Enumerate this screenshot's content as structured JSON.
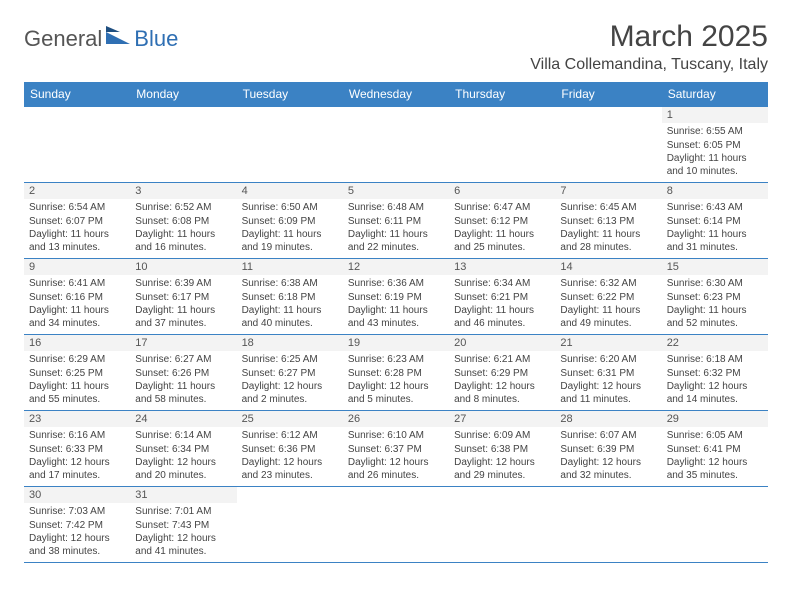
{
  "logo": {
    "text1": "General",
    "text2": "Blue",
    "accent": "#2f6fb3"
  },
  "title": "March 2025",
  "location": "Villa Collemandina, Tuscany, Italy",
  "colors": {
    "headerBg": "#3b82c4",
    "headerText": "#ffffff",
    "border": "#3b82c4",
    "dayNumBg": "#f3f3f3",
    "text": "#444444"
  },
  "dayHeaders": [
    "Sunday",
    "Monday",
    "Tuesday",
    "Wednesday",
    "Thursday",
    "Friday",
    "Saturday"
  ],
  "weeks": [
    [
      null,
      null,
      null,
      null,
      null,
      null,
      {
        "n": "1",
        "sunrise": "6:55 AM",
        "sunset": "6:05 PM",
        "daylight": "11 hours and 10 minutes."
      }
    ],
    [
      {
        "n": "2",
        "sunrise": "6:54 AM",
        "sunset": "6:07 PM",
        "daylight": "11 hours and 13 minutes."
      },
      {
        "n": "3",
        "sunrise": "6:52 AM",
        "sunset": "6:08 PM",
        "daylight": "11 hours and 16 minutes."
      },
      {
        "n": "4",
        "sunrise": "6:50 AM",
        "sunset": "6:09 PM",
        "daylight": "11 hours and 19 minutes."
      },
      {
        "n": "5",
        "sunrise": "6:48 AM",
        "sunset": "6:11 PM",
        "daylight": "11 hours and 22 minutes."
      },
      {
        "n": "6",
        "sunrise": "6:47 AM",
        "sunset": "6:12 PM",
        "daylight": "11 hours and 25 minutes."
      },
      {
        "n": "7",
        "sunrise": "6:45 AM",
        "sunset": "6:13 PM",
        "daylight": "11 hours and 28 minutes."
      },
      {
        "n": "8",
        "sunrise": "6:43 AM",
        "sunset": "6:14 PM",
        "daylight": "11 hours and 31 minutes."
      }
    ],
    [
      {
        "n": "9",
        "sunrise": "6:41 AM",
        "sunset": "6:16 PM",
        "daylight": "11 hours and 34 minutes."
      },
      {
        "n": "10",
        "sunrise": "6:39 AM",
        "sunset": "6:17 PM",
        "daylight": "11 hours and 37 minutes."
      },
      {
        "n": "11",
        "sunrise": "6:38 AM",
        "sunset": "6:18 PM",
        "daylight": "11 hours and 40 minutes."
      },
      {
        "n": "12",
        "sunrise": "6:36 AM",
        "sunset": "6:19 PM",
        "daylight": "11 hours and 43 minutes."
      },
      {
        "n": "13",
        "sunrise": "6:34 AM",
        "sunset": "6:21 PM",
        "daylight": "11 hours and 46 minutes."
      },
      {
        "n": "14",
        "sunrise": "6:32 AM",
        "sunset": "6:22 PM",
        "daylight": "11 hours and 49 minutes."
      },
      {
        "n": "15",
        "sunrise": "6:30 AM",
        "sunset": "6:23 PM",
        "daylight": "11 hours and 52 minutes."
      }
    ],
    [
      {
        "n": "16",
        "sunrise": "6:29 AM",
        "sunset": "6:25 PM",
        "daylight": "11 hours and 55 minutes."
      },
      {
        "n": "17",
        "sunrise": "6:27 AM",
        "sunset": "6:26 PM",
        "daylight": "11 hours and 58 minutes."
      },
      {
        "n": "18",
        "sunrise": "6:25 AM",
        "sunset": "6:27 PM",
        "daylight": "12 hours and 2 minutes."
      },
      {
        "n": "19",
        "sunrise": "6:23 AM",
        "sunset": "6:28 PM",
        "daylight": "12 hours and 5 minutes."
      },
      {
        "n": "20",
        "sunrise": "6:21 AM",
        "sunset": "6:29 PM",
        "daylight": "12 hours and 8 minutes."
      },
      {
        "n": "21",
        "sunrise": "6:20 AM",
        "sunset": "6:31 PM",
        "daylight": "12 hours and 11 minutes."
      },
      {
        "n": "22",
        "sunrise": "6:18 AM",
        "sunset": "6:32 PM",
        "daylight": "12 hours and 14 minutes."
      }
    ],
    [
      {
        "n": "23",
        "sunrise": "6:16 AM",
        "sunset": "6:33 PM",
        "daylight": "12 hours and 17 minutes."
      },
      {
        "n": "24",
        "sunrise": "6:14 AM",
        "sunset": "6:34 PM",
        "daylight": "12 hours and 20 minutes."
      },
      {
        "n": "25",
        "sunrise": "6:12 AM",
        "sunset": "6:36 PM",
        "daylight": "12 hours and 23 minutes."
      },
      {
        "n": "26",
        "sunrise": "6:10 AM",
        "sunset": "6:37 PM",
        "daylight": "12 hours and 26 minutes."
      },
      {
        "n": "27",
        "sunrise": "6:09 AM",
        "sunset": "6:38 PM",
        "daylight": "12 hours and 29 minutes."
      },
      {
        "n": "28",
        "sunrise": "6:07 AM",
        "sunset": "6:39 PM",
        "daylight": "12 hours and 32 minutes."
      },
      {
        "n": "29",
        "sunrise": "6:05 AM",
        "sunset": "6:41 PM",
        "daylight": "12 hours and 35 minutes."
      }
    ],
    [
      {
        "n": "30",
        "sunrise": "7:03 AM",
        "sunset": "7:42 PM",
        "daylight": "12 hours and 38 minutes."
      },
      {
        "n": "31",
        "sunrise": "7:01 AM",
        "sunset": "7:43 PM",
        "daylight": "12 hours and 41 minutes."
      },
      null,
      null,
      null,
      null,
      null
    ]
  ],
  "labels": {
    "sunrise": "Sunrise:",
    "sunset": "Sunset:",
    "daylight": "Daylight:"
  }
}
